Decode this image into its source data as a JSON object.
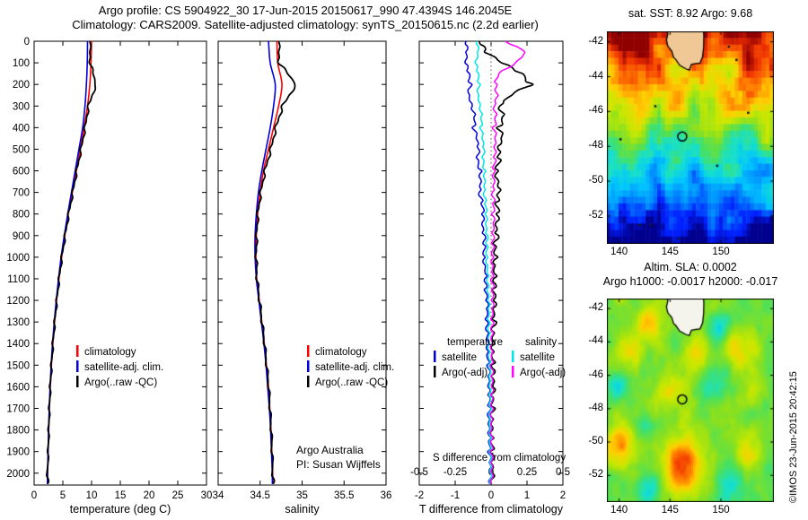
{
  "header": {
    "line1": "Argo profile: CS 5904922_30 17-Jun-2015 20150617_990 47.4394S 146.2045E",
    "line2": "Climatology: CARS2009. Satellite-adjusted climatology: synTS_20150615.nc (2.2d earlier)"
  },
  "credit": "©IMOS 23-Jun-2015 20:42:15",
  "chart_data": [
    {
      "id": "temperature-profile",
      "type": "line",
      "xlabel": "temperature (deg C)",
      "xlim": [
        0,
        30
      ],
      "xticks": [
        0,
        5,
        10,
        15,
        20,
        25,
        30
      ],
      "ylim": [
        0,
        2055
      ],
      "yticks": [
        0,
        100,
        200,
        300,
        400,
        500,
        600,
        700,
        800,
        900,
        1000,
        1100,
        1200,
        1300,
        1400,
        1500,
        1600,
        1700,
        1800,
        1900,
        2000
      ],
      "depths": [
        0,
        100,
        200,
        300,
        400,
        500,
        600,
        700,
        800,
        900,
        1000,
        1100,
        1200,
        1300,
        1400,
        1500,
        1600,
        1700,
        1800,
        1900,
        2000,
        2050
      ],
      "series": [
        {
          "key": "climatology",
          "name": "climatology",
          "color": "#ff0000",
          "wiggle": 0,
          "values": [
            10.0,
            9.9,
            9.7,
            9.3,
            8.7,
            8.05,
            7.35,
            6.65,
            5.95,
            5.35,
            4.8,
            4.33,
            3.92,
            3.57,
            3.27,
            3.02,
            2.82,
            2.66,
            2.55,
            2.45,
            2.36,
            2.34
          ]
        },
        {
          "key": "satellite-adj-clim",
          "name": "satellite-adj. clim.",
          "color": "#0000dd",
          "wiggle": 0,
          "values": [
            9.3,
            9.25,
            9.1,
            8.85,
            8.45,
            7.8,
            7.15,
            6.5,
            5.85,
            5.25,
            4.7,
            4.25,
            3.85,
            3.5,
            3.2,
            2.96,
            2.78,
            2.63,
            2.52,
            2.43,
            2.33,
            2.31
          ]
        },
        {
          "key": "argo-raw",
          "name": "Argo(..raw -QC)",
          "color": "#000000",
          "wiggle": 0.22,
          "width": 1.8,
          "values": [
            9.68,
            9.8,
            10.8,
            9.5,
            8.9,
            8.2,
            7.45,
            6.75,
            6.05,
            5.42,
            4.85,
            4.38,
            3.97,
            3.61,
            3.3,
            3.05,
            2.84,
            2.68,
            2.57,
            2.47,
            2.37,
            2.35
          ]
        }
      ]
    },
    {
      "id": "salinity-profile",
      "type": "line",
      "xlabel": "salinity",
      "xlim": [
        34,
        36
      ],
      "xticks": [
        34,
        34.5,
        35,
        35.5,
        36
      ],
      "ylim": [
        0,
        2055
      ],
      "yticks": [
        0,
        100,
        200,
        300,
        400,
        500,
        600,
        700,
        800,
        900,
        1000,
        1100,
        1200,
        1300,
        1400,
        1500,
        1600,
        1700,
        1800,
        1900,
        2000
      ],
      "depths": [
        0,
        100,
        200,
        300,
        400,
        500,
        600,
        700,
        800,
        900,
        1000,
        1100,
        1200,
        1300,
        1400,
        1500,
        1600,
        1700,
        1800,
        1900,
        2000,
        2050
      ],
      "annotations": [
        "Argo Australia",
        "PI: Susan Wijffels"
      ],
      "series": [
        {
          "key": "climatology",
          "name": "climatology",
          "color": "#ff0000",
          "wiggle": 0,
          "values": [
            34.7,
            34.71,
            34.76,
            34.72,
            34.66,
            34.6,
            34.54,
            34.5,
            34.47,
            34.455,
            34.45,
            34.46,
            34.49,
            34.52,
            34.55,
            34.575,
            34.6,
            34.615,
            34.63,
            34.64,
            34.65,
            34.65
          ]
        },
        {
          "key": "satellite-adj-clim",
          "name": "satellite-adj. clim.",
          "color": "#0000dd",
          "wiggle": 0,
          "values": [
            34.6,
            34.62,
            34.68,
            34.66,
            34.62,
            34.57,
            34.52,
            34.48,
            34.455,
            34.44,
            34.44,
            34.455,
            34.485,
            34.515,
            34.545,
            34.57,
            34.59,
            34.61,
            34.625,
            34.635,
            34.645,
            34.645
          ]
        },
        {
          "key": "argo-raw",
          "name": "Argo(..raw -QC)",
          "color": "#000000",
          "wiggle": 0.018,
          "width": 1.8,
          "values": [
            34.72,
            34.73,
            34.93,
            34.77,
            34.69,
            34.63,
            34.56,
            34.51,
            34.475,
            34.46,
            34.455,
            34.465,
            34.495,
            34.525,
            34.555,
            34.58,
            34.605,
            34.62,
            34.635,
            34.645,
            34.655,
            34.655
          ]
        }
      ]
    },
    {
      "id": "difference-panel",
      "type": "line",
      "xlabel": "T difference from climatology",
      "xlabel2": "S difference from climatology",
      "xlim": [
        -2,
        2
      ],
      "xticks": [
        -2,
        -1,
        0,
        1,
        2
      ],
      "s_xticks": [
        -0.5,
        -0.25,
        0,
        0.25,
        0.5
      ],
      "s_scale": 4,
      "ylim": [
        0,
        2055
      ],
      "yticks": [
        0,
        100,
        200,
        300,
        400,
        500,
        600,
        700,
        800,
        900,
        1000,
        1100,
        1200,
        1300,
        1400,
        1500,
        1600,
        1700,
        1800,
        1900,
        2000
      ],
      "depths": [
        0,
        50,
        100,
        150,
        200,
        250,
        300,
        350,
        400,
        450,
        500,
        550,
        600,
        650,
        700,
        750,
        800,
        850,
        900,
        950,
        1000,
        1050,
        1100,
        1150,
        1200,
        1250,
        1300,
        1350,
        1400,
        1450,
        1500,
        1550,
        1600,
        1650,
        1700,
        1750,
        1800,
        1850,
        1900,
        1950,
        2000,
        2050
      ],
      "legend_groups": [
        {
          "header": "temperature",
          "entries": [
            {
              "label": "satellite",
              "color": "#0000dd"
            },
            {
              "label": "Argo(-adj)",
              "color": "#000000"
            }
          ]
        },
        {
          "header": "salinity",
          "entries": [
            {
              "label": "satellite",
              "color": "#00e6e6"
            },
            {
              "label": "Argo(-adj)",
              "color": "#ff00ff"
            }
          ]
        }
      ],
      "series": [
        {
          "key": "t-diff-satellite",
          "name": "satellite",
          "color": "#0000dd",
          "scale": 1,
          "wiggle": 0.05,
          "values": [
            -0.7,
            -0.68,
            -0.72,
            -0.62,
            -0.58,
            -0.62,
            -0.52,
            -0.45,
            -0.48,
            -0.4,
            -0.36,
            -0.38,
            -0.3,
            -0.28,
            -0.31,
            -0.25,
            -0.22,
            -0.25,
            -0.2,
            -0.18,
            -0.2,
            -0.16,
            -0.14,
            -0.16,
            -0.12,
            -0.11,
            -0.13,
            -0.1,
            -0.08,
            -0.1,
            -0.07,
            -0.06,
            -0.08,
            -0.05,
            -0.05,
            -0.06,
            -0.04,
            -0.04,
            -0.05,
            -0.03,
            -0.03,
            -0.03
          ]
        },
        {
          "key": "t-diff-argo",
          "name": "Argo(-adj)",
          "color": "#000000",
          "scale": 1,
          "wiggle": 0.07,
          "width": 1.7,
          "values": [
            -0.32,
            -0.15,
            0.3,
            0.85,
            1.1,
            0.55,
            0.25,
            0.35,
            0.22,
            0.3,
            0.18,
            0.24,
            0.14,
            0.2,
            0.25,
            0.15,
            0.2,
            0.12,
            0.16,
            0.1,
            0.14,
            0.09,
            0.12,
            0.07,
            0.1,
            0.06,
            0.09,
            0.05,
            0.08,
            0.04,
            0.07,
            0.04,
            0.06,
            0.03,
            0.05,
            0.03,
            0.04,
            0.02,
            0.04,
            0.02,
            0.03,
            0.02
          ]
        },
        {
          "key": "s-diff-satellite",
          "name": "satellite",
          "color": "#00e6e6",
          "scale": 4,
          "wiggle": 0.04,
          "values": [
            -0.1,
            -0.09,
            -0.11,
            -0.09,
            -0.085,
            -0.09,
            -0.075,
            -0.065,
            -0.07,
            -0.06,
            -0.052,
            -0.056,
            -0.046,
            -0.042,
            -0.046,
            -0.038,
            -0.034,
            -0.037,
            -0.03,
            -0.027,
            -0.03,
            -0.024,
            -0.022,
            -0.024,
            -0.019,
            -0.017,
            -0.019,
            -0.015,
            -0.013,
            -0.015,
            -0.011,
            -0.01,
            -0.012,
            -0.008,
            -0.008,
            -0.009,
            -0.006,
            -0.006,
            -0.007,
            -0.005,
            -0.005,
            -0.005
          ]
        },
        {
          "key": "s-diff-argo",
          "name": "Argo(-adj)",
          "color": "#ff00ff",
          "scale": 4,
          "wiggle": 0.05,
          "values": [
            0.1,
            0.24,
            0.17,
            0.05,
            0.03,
            0.045,
            0.025,
            0.035,
            0.02,
            0.03,
            0.022,
            0.028,
            0.018,
            0.024,
            0.015,
            0.02,
            0.013,
            0.017,
            0.011,
            0.015,
            0.01,
            0.013,
            0.009,
            0.012,
            0.008,
            0.01,
            0.007,
            0.009,
            0.006,
            0.008,
            0.005,
            0.007,
            0.005,
            0.006,
            0.004,
            0.005,
            0.004,
            0.005,
            0.003,
            0.004,
            0.003,
            0.003
          ]
        }
      ]
    }
  ],
  "maps": {
    "palette": [
      "#00008f",
      "#0020ff",
      "#0080ff",
      "#00c4ff",
      "#18e0c8",
      "#48e060",
      "#88e020",
      "#c8e800",
      "#ffd000",
      "#ff8000",
      "#f03000",
      "#900000"
    ],
    "land_color": "#f0c896",
    "coast": [
      [
        144.62,
        -40.9
      ],
      [
        144.72,
        -41.2
      ],
      [
        144.78,
        -41.55
      ],
      [
        144.65,
        -41.9
      ],
      [
        144.78,
        -42.25
      ],
      [
        145.18,
        -42.55
      ],
      [
        145.35,
        -42.9
      ],
      [
        145.55,
        -43.0
      ],
      [
        145.95,
        -43.35
      ],
      [
        146.55,
        -43.55
      ],
      [
        146.9,
        -43.62
      ],
      [
        147.1,
        -43.3
      ],
      [
        147.55,
        -43.25
      ],
      [
        147.95,
        -43.22
      ],
      [
        148.2,
        -42.85
      ],
      [
        148.3,
        -42.3
      ],
      [
        148.32,
        -41.65
      ],
      [
        148.25,
        -41.1
      ],
      [
        148.1,
        -40.8
      ],
      [
        146.5,
        -40.65
      ]
    ],
    "sst": {
      "title": "sat. SST: 8.92 Argo: 9.68",
      "lon_range": [
        138.8,
        155.2
      ],
      "lat_range": [
        -41.4,
        -53.6
      ],
      "xticks": [
        140,
        145,
        150
      ],
      "yticks": [
        -42,
        -44,
        -46,
        -48,
        -50,
        -52
      ],
      "marker": {
        "lon": 146.2,
        "lat": -47.44
      }
    },
    "sla": {
      "title1": "Altim. SLA: 0.0002",
      "title2": "Argo h1000: -0.0017 h2000: -0.017",
      "lon_range": [
        138.8,
        155.2
      ],
      "lat_range": [
        -41.4,
        -53.6
      ],
      "xticks": [
        140,
        145,
        150
      ],
      "yticks": [
        -42,
        -44,
        -46,
        -48,
        -50,
        -52
      ],
      "marker": {
        "lon": 146.2,
        "lat": -47.44
      },
      "blobs": [
        [
          142.8,
          -42.8,
          0.22,
          1.3
        ],
        [
          141.0,
          -44.6,
          0.16,
          1.4
        ],
        [
          147.6,
          -44.6,
          0.14,
          1.3
        ],
        [
          151.6,
          -44.2,
          0.2,
          1.5
        ],
        [
          149.8,
          -43.2,
          -0.16,
          1.2
        ],
        [
          139.6,
          -46.6,
          -0.18,
          1.4
        ],
        [
          144.6,
          -46.9,
          0.15,
          1.6
        ],
        [
          149.4,
          -46.6,
          -0.14,
          1.5
        ],
        [
          152.6,
          -47.0,
          0.12,
          1.3
        ],
        [
          140.2,
          -50.2,
          0.26,
          1.7
        ],
        [
          142.2,
          -49.0,
          -0.12,
          1.3
        ],
        [
          146.3,
          -51.6,
          0.36,
          2.2
        ],
        [
          143.0,
          -52.9,
          -0.22,
          1.6
        ],
        [
          150.6,
          -52.4,
          -0.18,
          1.5
        ],
        [
          152.8,
          -50.8,
          0.14,
          1.3
        ]
      ]
    }
  }
}
